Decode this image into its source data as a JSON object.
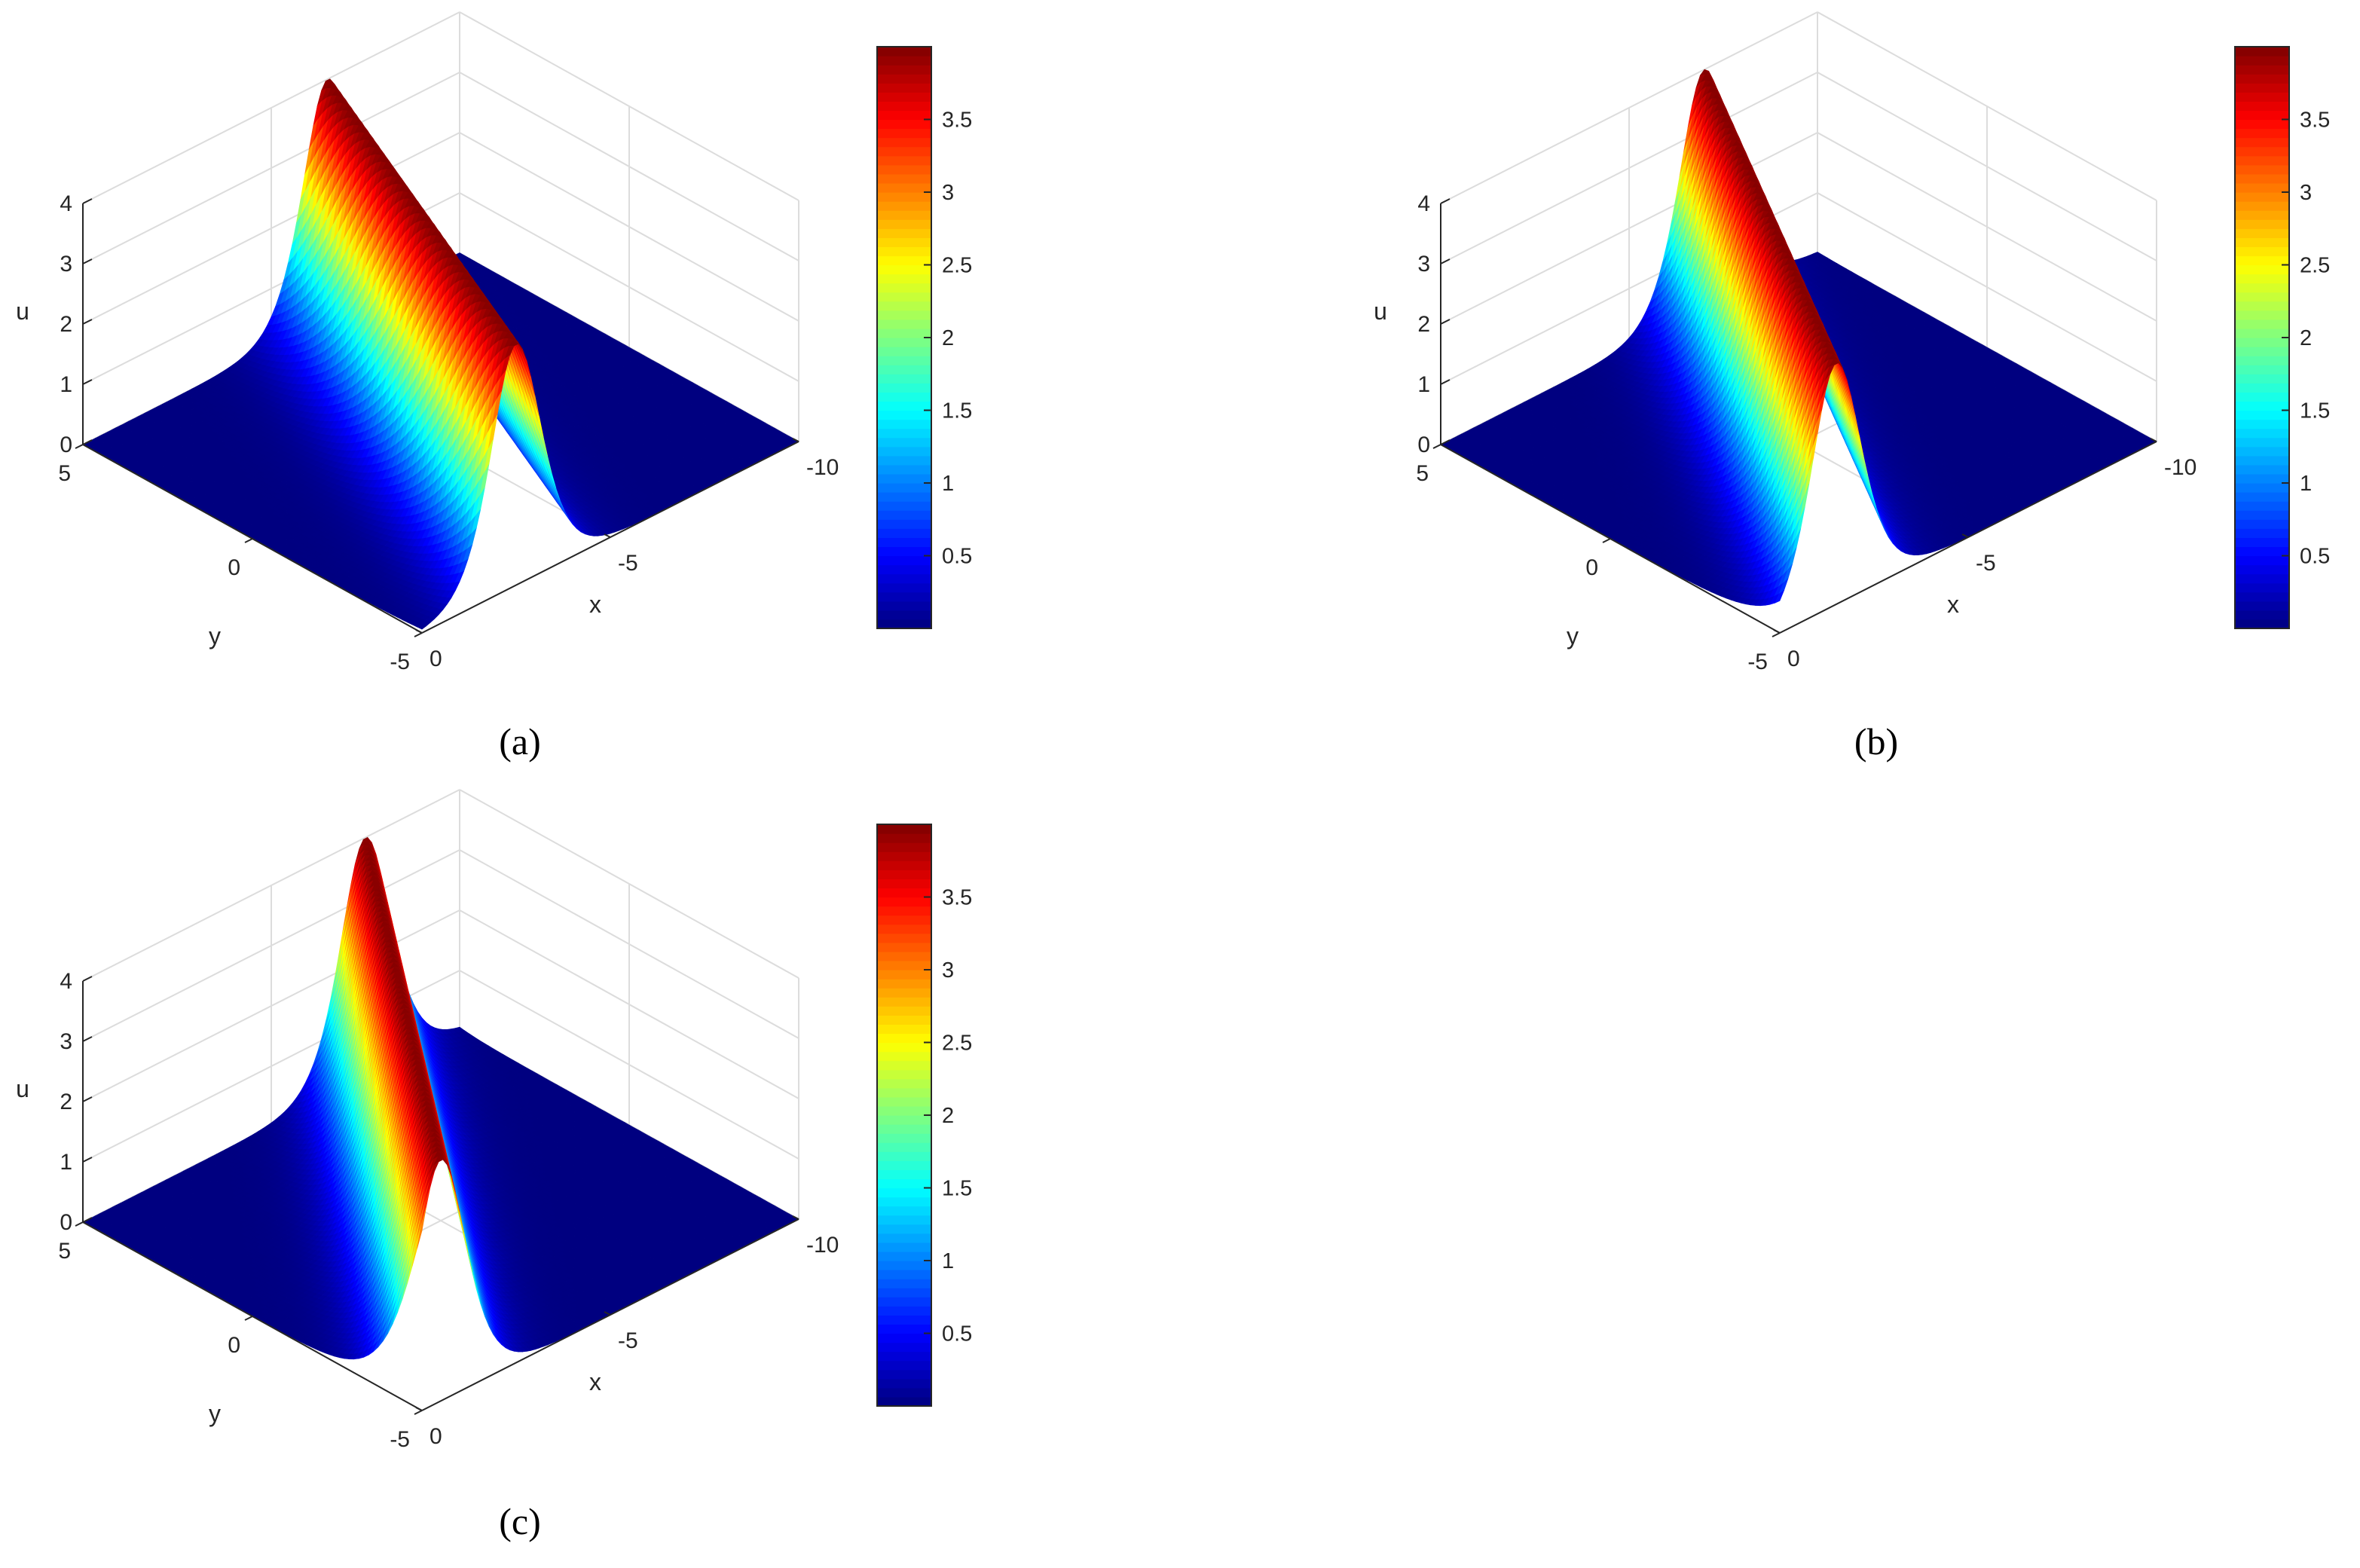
{
  "chart_data": [
    {
      "type": "surface",
      "caption": "(a)",
      "xlabel": "x",
      "ylabel": "y",
      "zlabel": "u",
      "xlim": [
        -10,
        0
      ],
      "ylim": [
        -5,
        5
      ],
      "zlim": [
        0,
        4
      ],
      "x_ticks": [
        "-10",
        "-5",
        "0"
      ],
      "y_ticks": [
        "5",
        "0",
        "-5"
      ],
      "z_ticks": [
        "0",
        "1",
        "2",
        "3",
        "4"
      ],
      "colorbar": {
        "min": 0,
        "max": 4,
        "ticks": [
          "0.5",
          "1",
          "1.5",
          "2",
          "2.5",
          "3",
          "3.5"
        ],
        "colormap": "jet"
      },
      "surface": {
        "peak": 4,
        "form": "soliton",
        "peak_x_at_y_-5": -2.5,
        "peak_x_at_y_5": -6.5,
        "width": 0.9,
        "grid_on": true
      }
    },
    {
      "type": "surface",
      "caption": "(b)",
      "xlabel": "x",
      "ylabel": "y",
      "zlabel": "u",
      "xlim": [
        -10,
        0
      ],
      "ylim": [
        -5,
        5
      ],
      "zlim": [
        0,
        4
      ],
      "x_ticks": [
        "-10",
        "-5",
        "0"
      ],
      "y_ticks": [
        "5",
        "0",
        "-5"
      ],
      "z_ticks": [
        "0",
        "1",
        "2",
        "3",
        "4"
      ],
      "colorbar": {
        "min": 0,
        "max": 4,
        "ticks": [
          "0.5",
          "1",
          "1.5",
          "2",
          "2.5",
          "3",
          "3.5"
        ],
        "colormap": "jet"
      },
      "surface": {
        "peak": 4,
        "form": "soliton",
        "peak_x_at_y_-5": -1.5,
        "peak_x_at_y_5": -7.0,
        "width": 0.9,
        "grid_on": true
      }
    },
    {
      "type": "surface",
      "caption": "(c)",
      "xlabel": "x",
      "ylabel": "y",
      "zlabel": "u",
      "xlim": [
        -10,
        0
      ],
      "ylim": [
        -5,
        5
      ],
      "zlim": [
        0,
        4
      ],
      "x_ticks": [
        "-10",
        "-5",
        "0"
      ],
      "y_ticks": [
        "5",
        "0",
        "-5"
      ],
      "z_ticks": [
        "0",
        "1",
        "2",
        "3",
        "4"
      ],
      "colorbar": {
        "min": 0,
        "max": 4,
        "ticks": [
          "0.5",
          "1",
          "1.5",
          "2",
          "2.5",
          "3",
          "3.5"
        ],
        "colormap": "jet"
      },
      "surface": {
        "peak": 4,
        "form": "soliton",
        "peak_x_at_y_-5": -0.5,
        "peak_x_at_y_5": -7.5,
        "width": 0.9,
        "grid_on": true
      }
    }
  ]
}
